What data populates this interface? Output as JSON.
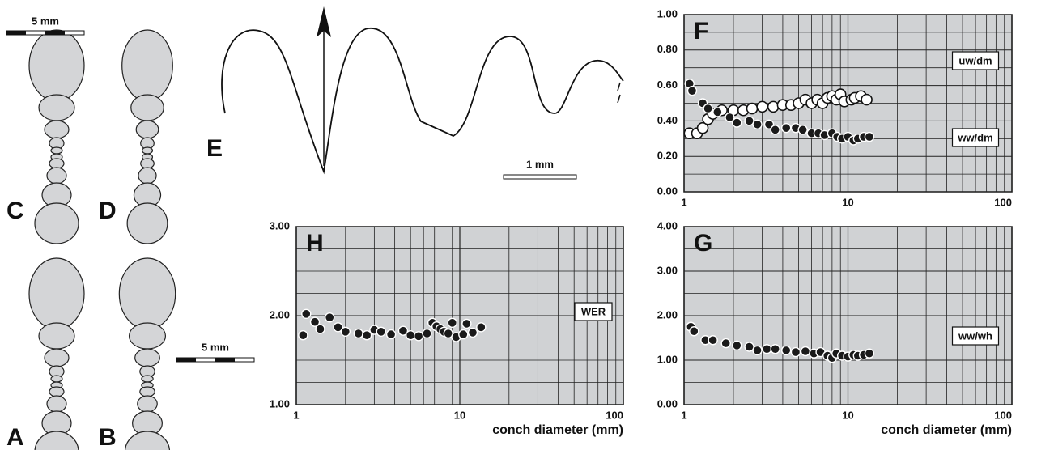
{
  "figure": {
    "scale_bars": [
      "5 mm",
      "5 mm",
      "1 mm"
    ],
    "panel_labels": [
      "C",
      "D",
      "A",
      "B",
      "E"
    ]
  },
  "chart_data": [
    {
      "type": "scatter",
      "panel": "F",
      "xscale": "log",
      "grid": true,
      "xlim": [
        1,
        100
      ],
      "xticks": [
        1,
        10,
        100
      ],
      "x_minor_grid": [
        2,
        3,
        4,
        5,
        6,
        7,
        8,
        9,
        20,
        30,
        40,
        50,
        60,
        70,
        80,
        90
      ],
      "ylim": [
        0,
        1
      ],
      "yticks": [
        {
          "value": 0,
          "label": "0.00"
        },
        {
          "value": 0.2,
          "label": "0.20"
        },
        {
          "value": 0.4,
          "label": "0.40"
        },
        {
          "value": 0.6,
          "label": "0.60"
        },
        {
          "value": 0.8,
          "label": "0.80"
        },
        {
          "value": 1,
          "label": "1.00"
        }
      ],
      "y_minor_grid": [
        0.1,
        0.3,
        0.5,
        0.7,
        0.9
      ],
      "series": [
        {
          "name": "uw/dm",
          "color": "#ffffff",
          "x": [
            1.08,
            1.2,
            1.3,
            1.4,
            1.5,
            1.7,
            2.0,
            2.3,
            2.6,
            3.0,
            3.5,
            4.0,
            4.5,
            5.0,
            5.5,
            6.0,
            6.5,
            7.0,
            7.5,
            8.0,
            8.5,
            9.0,
            9.5,
            10.5,
            11.0,
            12.0,
            13.0
          ],
          "values": [
            0.33,
            0.33,
            0.36,
            0.41,
            0.44,
            0.46,
            0.46,
            0.46,
            0.47,
            0.48,
            0.48,
            0.49,
            0.49,
            0.5,
            0.52,
            0.5,
            0.52,
            0.5,
            0.53,
            0.54,
            0.52,
            0.55,
            0.51,
            0.52,
            0.53,
            0.54,
            0.52
          ]
        },
        {
          "name": "ww/dm",
          "color": "#1a1a1a",
          "x": [
            1.08,
            1.12,
            1.3,
            1.4,
            1.6,
            1.9,
            2.1,
            2.5,
            2.8,
            3.3,
            3.6,
            4.2,
            4.8,
            5.3,
            6.0,
            6.6,
            7.2,
            8.0,
            8.6,
            9.2,
            10.0,
            10.8,
            11.5,
            12.5,
            13.5
          ],
          "values": [
            0.61,
            0.57,
            0.5,
            0.47,
            0.45,
            0.42,
            0.39,
            0.4,
            0.38,
            0.38,
            0.35,
            0.36,
            0.36,
            0.35,
            0.33,
            0.33,
            0.32,
            0.33,
            0.31,
            0.3,
            0.31,
            0.29,
            0.3,
            0.31,
            0.31
          ]
        }
      ]
    },
    {
      "type": "scatter",
      "panel": "H",
      "xscale": "log",
      "grid": true,
      "x_label": "conch diameter (mm)",
      "xlim": [
        1,
        100
      ],
      "xticks": [
        1,
        10,
        100
      ],
      "x_minor_grid": [
        2,
        3,
        4,
        5,
        6,
        7,
        8,
        9,
        20,
        30,
        40,
        50,
        60,
        70,
        80,
        90
      ],
      "ylim": [
        1,
        3
      ],
      "yticks": [
        {
          "value": 1,
          "label": "1.00"
        },
        {
          "value": 2,
          "label": "2.00"
        },
        {
          "value": 3,
          "label": "3.00"
        }
      ],
      "y_minor_grid": [
        1.25,
        1.5,
        1.75,
        2.25,
        2.5,
        2.75
      ],
      "series": [
        {
          "name": "WER",
          "color": "#1a1a1a",
          "x": [
            1.1,
            1.15,
            1.3,
            1.4,
            1.6,
            1.8,
            2.0,
            2.4,
            2.7,
            3.0,
            3.3,
            3.8,
            4.5,
            5.0,
            5.6,
            6.3,
            6.8,
            7.2,
            7.6,
            8.0,
            8.5,
            9.0,
            9.5,
            10.5,
            11.0,
            12.0,
            13.5
          ],
          "values": [
            1.78,
            2.02,
            1.93,
            1.85,
            1.98,
            1.87,
            1.82,
            1.8,
            1.78,
            1.84,
            1.82,
            1.79,
            1.83,
            1.78,
            1.77,
            1.8,
            1.92,
            1.88,
            1.85,
            1.82,
            1.8,
            1.92,
            1.76,
            1.79,
            1.91,
            1.81,
            1.87
          ]
        }
      ]
    },
    {
      "type": "scatter",
      "panel": "G",
      "xscale": "log",
      "grid": true,
      "x_label": "conch diameter (mm)",
      "xlim": [
        1,
        100
      ],
      "xticks": [
        1,
        10,
        100
      ],
      "x_minor_grid": [
        2,
        3,
        4,
        5,
        6,
        7,
        8,
        9,
        20,
        30,
        40,
        50,
        60,
        70,
        80,
        90
      ],
      "ylim": [
        0,
        4
      ],
      "yticks": [
        {
          "value": 0,
          "label": "0.00"
        },
        {
          "value": 1,
          "label": "1.00"
        },
        {
          "value": 2,
          "label": "2.00"
        },
        {
          "value": 3,
          "label": "3.00"
        },
        {
          "value": 4,
          "label": "4.00"
        }
      ],
      "y_minor_grid": [
        0.5,
        1.5,
        2.5,
        3.5
      ],
      "series": [
        {
          "name": "ww/wh",
          "color": "#1a1a1a",
          "x": [
            1.1,
            1.15,
            1.35,
            1.5,
            1.8,
            2.1,
            2.5,
            2.8,
            3.2,
            3.6,
            4.2,
            4.8,
            5.5,
            6.2,
            6.8,
            7.5,
            8.0,
            8.5,
            9.2,
            10.0,
            10.8,
            11.5,
            12.5,
            13.5
          ],
          "values": [
            1.75,
            1.65,
            1.45,
            1.45,
            1.38,
            1.33,
            1.3,
            1.22,
            1.25,
            1.25,
            1.22,
            1.18,
            1.2,
            1.15,
            1.18,
            1.1,
            1.05,
            1.15,
            1.1,
            1.08,
            1.12,
            1.1,
            1.12,
            1.15
          ]
        }
      ]
    }
  ]
}
